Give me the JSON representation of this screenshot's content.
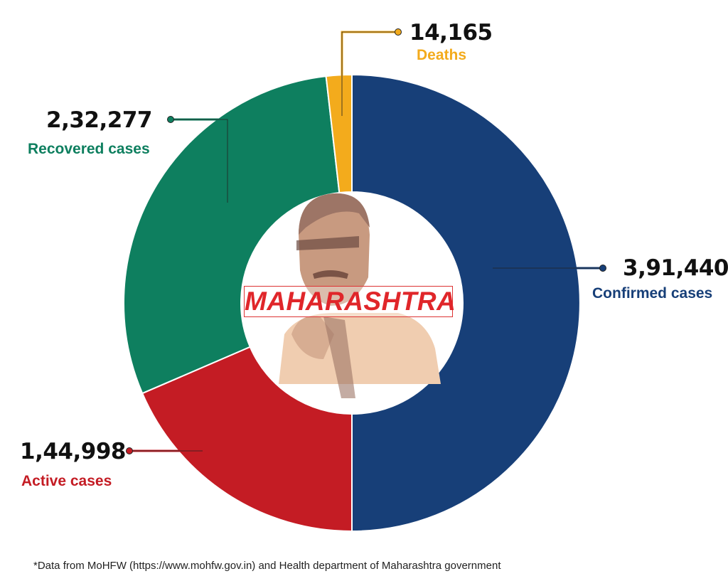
{
  "chart_data": {
    "type": "pie",
    "donut": true,
    "center_label": "MAHARASHTRA",
    "slices": [
      {
        "label": "Confirmed cases",
        "value": 391440,
        "display": "3,91,440",
        "color": "#173f78"
      },
      {
        "label": "Active cases",
        "value": 144998,
        "display": "1,44,998",
        "color": "#c41c24"
      },
      {
        "label": "Recovered cases",
        "value": 232277,
        "display": "2,32,277",
        "color": "#0e7f5f"
      },
      {
        "label": "Deaths",
        "value": 14165,
        "display": "14,165",
        "color": "#f3ab1c"
      }
    ],
    "note": "Confirmed cases occupy half the ring; Active, Recovered and Deaths together make up the other half."
  },
  "footnote": "*Data from MoHFW (https://www.mohfw.gov.in) and Health department of Maharashtra government"
}
